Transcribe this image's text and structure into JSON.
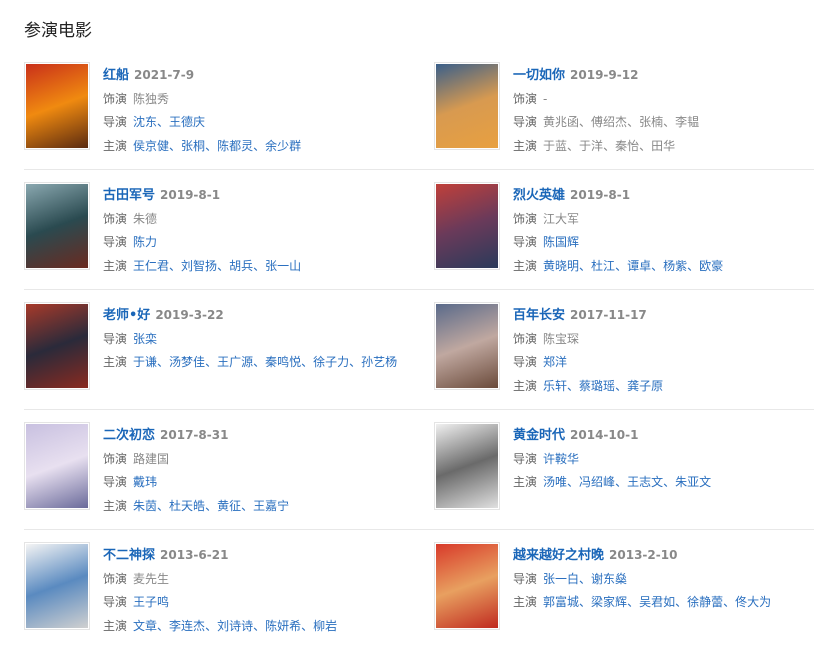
{
  "section_title": "参演电影",
  "labels": {
    "role": "饰演",
    "director": "导演",
    "cast": "主演",
    "separator": "、"
  },
  "colors": {
    "link": "#2a6fbf",
    "title": "#1a66b8",
    "muted": "#888888"
  },
  "movies": [
    {
      "title": "红船",
      "date": "2021-7-9",
      "role": "陈独秀",
      "directors": [
        "沈东",
        "王德庆"
      ],
      "cast": [
        "侯京健",
        "张桐",
        "陈都灵",
        "余少群"
      ],
      "linked": true,
      "poster": [
        "#c9301a",
        "#f08a10",
        "#5a2a10"
      ]
    },
    {
      "title": "一切如你",
      "date": "2019-9-12",
      "role": "-",
      "directors": [
        "黄兆函",
        "傅绍杰",
        "张楠",
        "李韫"
      ],
      "cast": [
        "于蓝",
        "于洋",
        "秦怡",
        "田华"
      ],
      "linked": false,
      "poster": [
        "#3a5f8a",
        "#d89a50",
        "#e8a040"
      ]
    },
    {
      "title": "古田军号",
      "date": "2019-8-1",
      "role": "朱德",
      "directors": [
        "陈力"
      ],
      "cast": [
        "王仁君",
        "刘智扬",
        "胡兵",
        "张一山"
      ],
      "linked": true,
      "poster": [
        "#8aa8b0",
        "#2a4a50",
        "#6a2a20"
      ]
    },
    {
      "title": "烈火英雄",
      "date": "2019-8-1",
      "role": "江大军",
      "directors": [
        "陈国辉"
      ],
      "cast": [
        "黄晓明",
        "杜江",
        "谭卓",
        "杨紫",
        "欧豪"
      ],
      "linked": true,
      "poster": [
        "#c0403a",
        "#6a3a5a",
        "#2a3a5a"
      ]
    },
    {
      "title": "老师•好",
      "date": "2019-3-22",
      "role": null,
      "directors": [
        "张栾"
      ],
      "cast": [
        "于谦",
        "汤梦佳",
        "王广源",
        "秦鸣悦",
        "徐子力",
        "孙艺杨"
      ],
      "linked": true,
      "poster": [
        "#a83a2a",
        "#2a2a3a",
        "#8a2a20"
      ]
    },
    {
      "title": "百年长安",
      "date": "2017-11-17",
      "role": "陈宝琛",
      "directors": [
        "郑洋"
      ],
      "cast": [
        "乐轩",
        "蔡璐瑶",
        "龚子原"
      ],
      "linked": true,
      "poster": [
        "#5a6a8a",
        "#c0a8a0",
        "#6a4a3a"
      ]
    },
    {
      "title": "二次初恋",
      "date": "2017-8-31",
      "role": "路建国",
      "directors": [
        "戴玮"
      ],
      "cast": [
        "朱茵",
        "杜天皓",
        "黄征",
        "王嘉宁"
      ],
      "linked": true,
      "poster": [
        "#c8c0e0",
        "#e8e0f0",
        "#6a6a9a"
      ]
    },
    {
      "title": "黄金时代",
      "date": "2014-10-1",
      "role": null,
      "directors": [
        "许鞍华"
      ],
      "cast": [
        "汤唯",
        "冯绍峰",
        "王志文",
        "朱亚文"
      ],
      "linked": true,
      "poster": [
        "#f0f0f0",
        "#6a6a6a",
        "#e0e0e0"
      ]
    },
    {
      "title": "不二神探",
      "date": "2013-6-21",
      "role": "麦先生",
      "directors": [
        "王子鸣"
      ],
      "cast": [
        "文章",
        "李连杰",
        "刘诗诗",
        "陈妍希",
        "柳岩"
      ],
      "linked": true,
      "poster": [
        "#f4f4f4",
        "#5a8ac0",
        "#d0d0d0"
      ]
    },
    {
      "title": "越来越好之村晚",
      "date": "2013-2-10",
      "role": null,
      "directors": [
        "张一白",
        "谢东燊"
      ],
      "cast": [
        "郭富城",
        "梁家辉",
        "吴君如",
        "徐静蕾",
        "佟大为"
      ],
      "linked": true,
      "poster": [
        "#d83a2a",
        "#e8a060",
        "#c02a20"
      ]
    }
  ]
}
